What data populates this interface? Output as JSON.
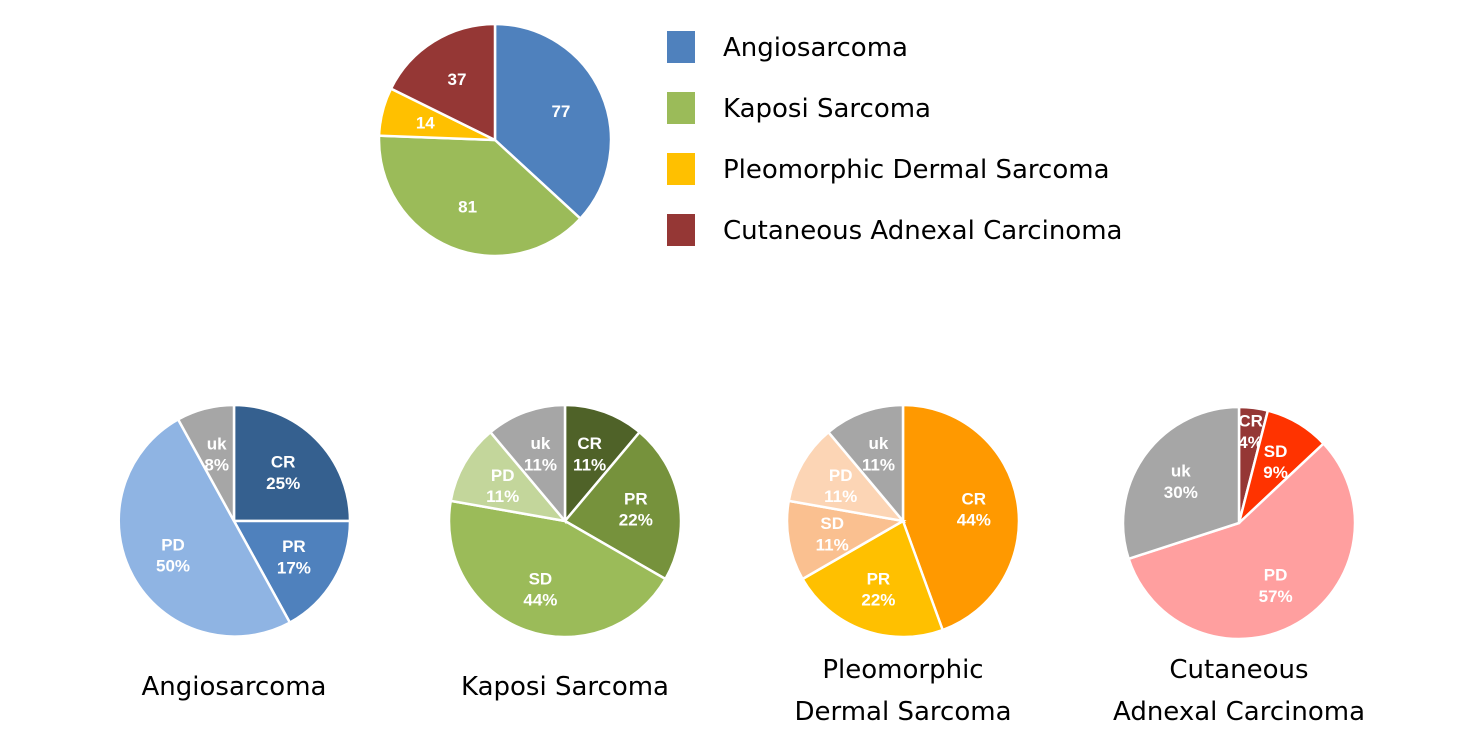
{
  "chart_data": [
    {
      "type": "pie",
      "id": "overview",
      "title": "",
      "start_angle_deg": 0,
      "slices": [
        {
          "label": "Angiosarcoma",
          "value": 77,
          "display": "77",
          "color": "#4f81bd"
        },
        {
          "label": "Kaposi Sarcoma",
          "value": 81,
          "display": "81",
          "color": "#9bbb59"
        },
        {
          "label": "Pleomorphic Dermal Sarcoma",
          "value": 14,
          "display": "14",
          "color": "#ffc000"
        },
        {
          "label": "Cutaneous Adnexal Carcinoma",
          "value": 37,
          "display": "37",
          "color": "#953735"
        }
      ],
      "legend": {
        "position": "right",
        "entries": [
          {
            "label": "Angiosarcoma",
            "color": "#4f81bd"
          },
          {
            "label": "Kaposi Sarcoma",
            "color": "#9bbb59"
          },
          {
            "label": "Pleomorphic Dermal Sarcoma",
            "color": "#ffc000"
          },
          {
            "label": "Cutaneous Adnexal Carcinoma",
            "color": "#953735"
          }
        ]
      }
    },
    {
      "type": "pie",
      "id": "angiosarcoma",
      "caption": [
        "Angiosarcoma"
      ],
      "start_angle_deg": 0,
      "slices": [
        {
          "category": "CR",
          "value": 25,
          "display": "25%",
          "color": "#35608f"
        },
        {
          "category": "PR",
          "value": 17,
          "display": "17%",
          "color": "#4f81bd"
        },
        {
          "category": "PD",
          "value": 50,
          "display": "50%",
          "color": "#8fb4e3"
        },
        {
          "category": "uk",
          "value": 8,
          "display": "8%",
          "color": "#a6a6a6"
        }
      ]
    },
    {
      "type": "pie",
      "id": "kaposi",
      "caption": [
        "Kaposi Sarcoma"
      ],
      "start_angle_deg": 0,
      "slices": [
        {
          "category": "CR",
          "value": 11,
          "display": "11%",
          "color": "#4f6228"
        },
        {
          "category": "PR",
          "value": 22,
          "display": "22%",
          "color": "#76923c"
        },
        {
          "category": "SD",
          "value": 44,
          "display": "44%",
          "color": "#9bbb59"
        },
        {
          "category": "PD",
          "value": 11,
          "display": "11%",
          "color": "#c3d69b"
        },
        {
          "category": "uk",
          "value": 11,
          "display": "11%",
          "color": "#a6a6a6"
        }
      ]
    },
    {
      "type": "pie",
      "id": "pleomorphic",
      "caption": [
        "Pleomorphic",
        "Dermal Sarcoma"
      ],
      "start_angle_deg": 0,
      "slices": [
        {
          "category": "CR",
          "value": 44,
          "display": "44%",
          "color": "#ff9900"
        },
        {
          "category": "PR",
          "value": 22,
          "display": "22%",
          "color": "#ffc000"
        },
        {
          "category": "SD",
          "value": 11,
          "display": "11%",
          "color": "#fac090"
        },
        {
          "category": "PD",
          "value": 11,
          "display": "11%",
          "color": "#fcd5b5"
        },
        {
          "category": "uk",
          "value": 11,
          "display": "11%",
          "color": "#a6a6a6"
        }
      ]
    },
    {
      "type": "pie",
      "id": "adnexal",
      "caption": [
        "Cutaneous",
        "Adnexal Carcinoma"
      ],
      "start_angle_deg": 0,
      "slices": [
        {
          "category": "CR",
          "value": 4,
          "display": "4%",
          "color": "#953735"
        },
        {
          "category": "SD",
          "value": 9,
          "display": "9%",
          "color": "#ff3300"
        },
        {
          "category": "PD",
          "value": 57,
          "display": "57%",
          "color": "#ff9f9f"
        },
        {
          "category": "uk",
          "value": 30,
          "display": "30%",
          "color": "#a6a6a6"
        }
      ]
    }
  ]
}
